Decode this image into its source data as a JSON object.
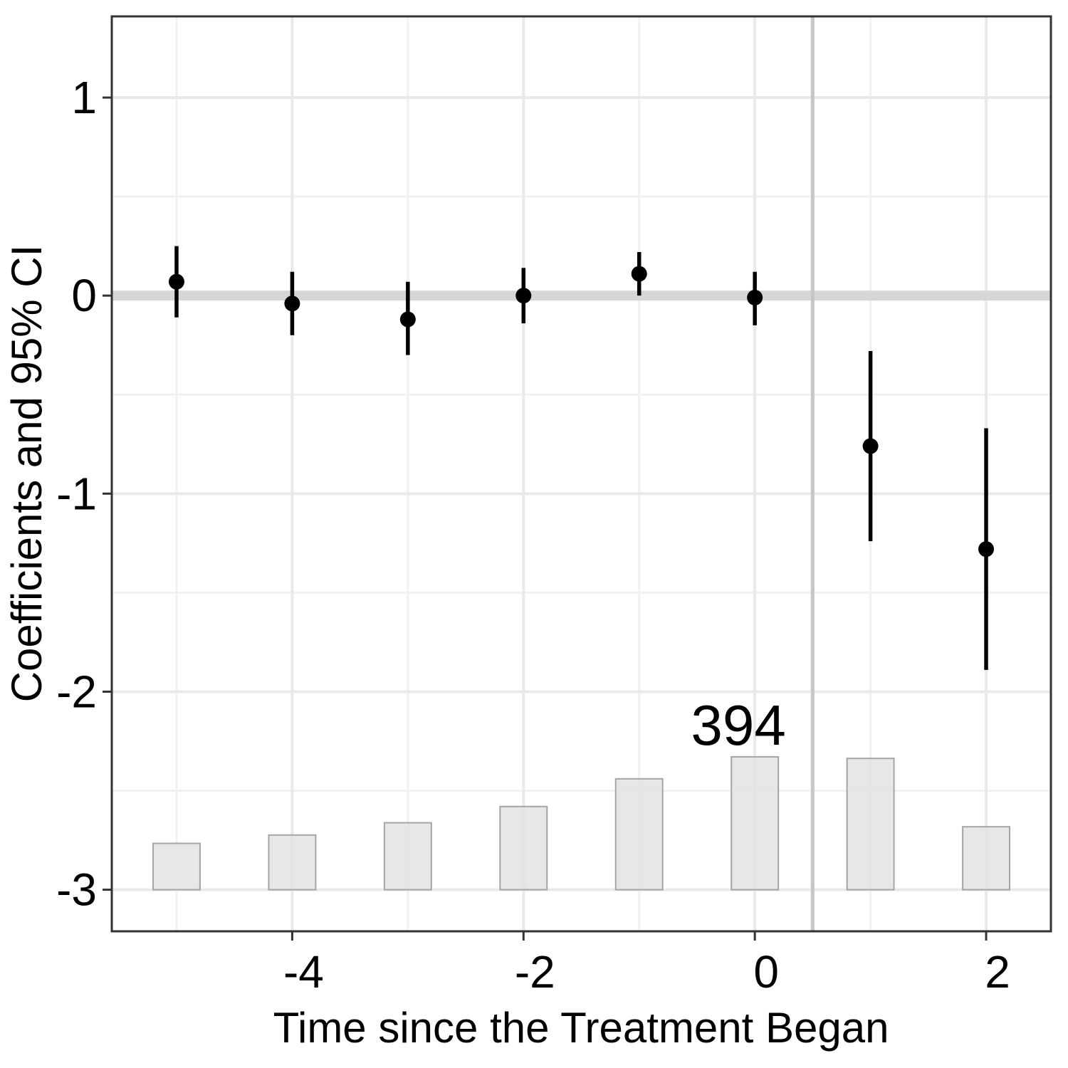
{
  "figure": {
    "kind": "event-study coefficient plot with observation-count bars",
    "background": "#ffffff"
  },
  "axes": {
    "x_title": "Time since the Treatment Began",
    "y_title": "Coefficients and 95% CI",
    "x_tick_labels": [
      "-4",
      "-2",
      "0",
      "2"
    ],
    "y_tick_labels": [
      "1",
      "0",
      "-1",
      "-2",
      "-3"
    ]
  },
  "chart_data": {
    "type": "pointrange+bar",
    "title": "",
    "xlabel": "Time since the Treatment Began",
    "ylabel": "Coefficients and 95% CI",
    "x": [
      -5,
      -4,
      -3,
      -2,
      -1,
      0,
      1,
      2
    ],
    "series": [
      {
        "name": "coefficients",
        "type": "pointrange",
        "estimates": [
          0.07,
          -0.04,
          -0.12,
          0.0,
          0.11,
          -0.01,
          -0.76,
          -1.28
        ],
        "ci_low": [
          -0.11,
          -0.2,
          -0.3,
          -0.14,
          0.0,
          -0.15,
          -1.24,
          -1.89
        ],
        "ci_high": [
          0.25,
          0.12,
          0.07,
          0.14,
          0.22,
          0.12,
          -0.28,
          -0.67
        ]
      },
      {
        "name": "observation-bars",
        "type": "bar",
        "baseline": -3,
        "heights_axis_units": [
          0.234,
          0.276,
          0.338,
          0.42,
          0.56,
          0.671,
          0.663,
          0.318
        ],
        "bar_width_axis_units": 0.406
      }
    ],
    "annotations": [
      {
        "name": "bar-count-label",
        "text": "394",
        "above_bar_at_x": 0
      }
    ],
    "reference_lines": {
      "hline_y": 0,
      "vline_x": 0.5
    },
    "xlim": [
      -5.56,
      2.56
    ],
    "ylim": [
      -3.21,
      1.41
    ],
    "x_ticks": [
      -4,
      -2,
      0,
      2
    ],
    "y_ticks": [
      1,
      0,
      -1,
      -2,
      -3
    ],
    "x_minor_gridlines": [
      -5,
      -3,
      -1,
      1
    ],
    "y_minor_gridlines": [
      0.5,
      -0.5,
      -1.5,
      -2.5
    ],
    "grid": true,
    "legend": false
  },
  "colors": {
    "point_and_range": "#000000",
    "bar_fill": "#e2e2e2",
    "bar_border": "#a5a5a5",
    "zero_band": "#d6d6d6",
    "treatment_line": "#c6c6c6",
    "grid_major": "#e9e9e9",
    "grid_minor": "#f1f1f1",
    "panel_border": "#333333",
    "tick_mark": "#333333",
    "text": "#000000"
  }
}
